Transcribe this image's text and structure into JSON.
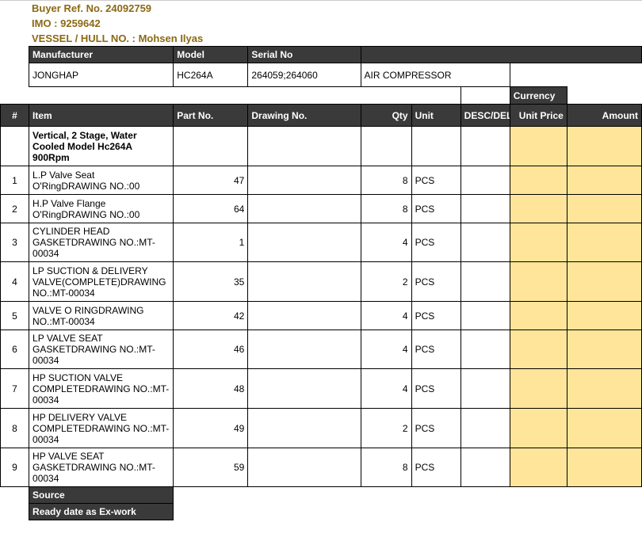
{
  "meta": {
    "buyer_ref": "Buyer Ref. No. 24092759",
    "imo": "IMO : 9259642",
    "vessel": "VESSEL / HULL NO. : Mohsen Ilyas"
  },
  "equip_hdr": {
    "manufacturer": "Manufacturer",
    "model": "Model",
    "serial": "Serial No"
  },
  "equip": {
    "manufacturer": "JONGHAP",
    "model": "HC264A",
    "serial": "264059;264060",
    "desc": "AIR COMPRESSOR"
  },
  "currency_label": "Currency",
  "cols": {
    "hash": "#",
    "item": "Item",
    "part": "Part No.",
    "drawing": "Drawing No.",
    "qty": "Qty",
    "unit": "Unit",
    "desc": "DESC/DEL.",
    "price": "Unit Price",
    "amount": "Amount"
  },
  "section_title": "Vertical, 2 Stage, Water Cooled Model Hc264A 900Rpm",
  "rows": [
    {
      "n": "1",
      "item": "L.P Valve Seat O'RingDRAWING NO.:00",
      "part": "47",
      "qty": "8",
      "unit": "PCS"
    },
    {
      "n": "2",
      "item": "H.P Valve Flange O'RingDRAWING NO.:00",
      "part": "64",
      "qty": "8",
      "unit": "PCS"
    },
    {
      "n": "3",
      "item": "CYLINDER HEAD GASKETDRAWING NO.:MT-00034",
      "part": "1",
      "qty": "4",
      "unit": "PCS"
    },
    {
      "n": "4",
      "item": "LP SUCTION & DELIVERY VALVE(COMPLETE)DRAWING NO.:MT-00034",
      "part": "35",
      "qty": "2",
      "unit": "PCS"
    },
    {
      "n": "5",
      "item": "VALVE O RINGDRAWING NO.:MT-00034",
      "part": "42",
      "qty": "4",
      "unit": "PCS"
    },
    {
      "n": "6",
      "item": "LP VALVE SEAT GASKETDRAWING NO.:MT-00034",
      "part": "46",
      "qty": "4",
      "unit": "PCS"
    },
    {
      "n": "7",
      "item": "HP SUCTION VALVE COMPLETEDRAWING NO.:MT-00034",
      "part": "48",
      "qty": "4",
      "unit": "PCS"
    },
    {
      "n": "8",
      "item": "HP DELIVERY VALVE COMPLETEDRAWING NO.:MT-00034",
      "part": "49",
      "qty": "2",
      "unit": "PCS"
    },
    {
      "n": "9",
      "item": "HP VALVE SEAT GASKETDRAWING NO.:MT-00034",
      "part": "59",
      "qty": "8",
      "unit": "PCS"
    }
  ],
  "footer": {
    "source": "Source",
    "ready": "Ready date as Ex-work"
  }
}
